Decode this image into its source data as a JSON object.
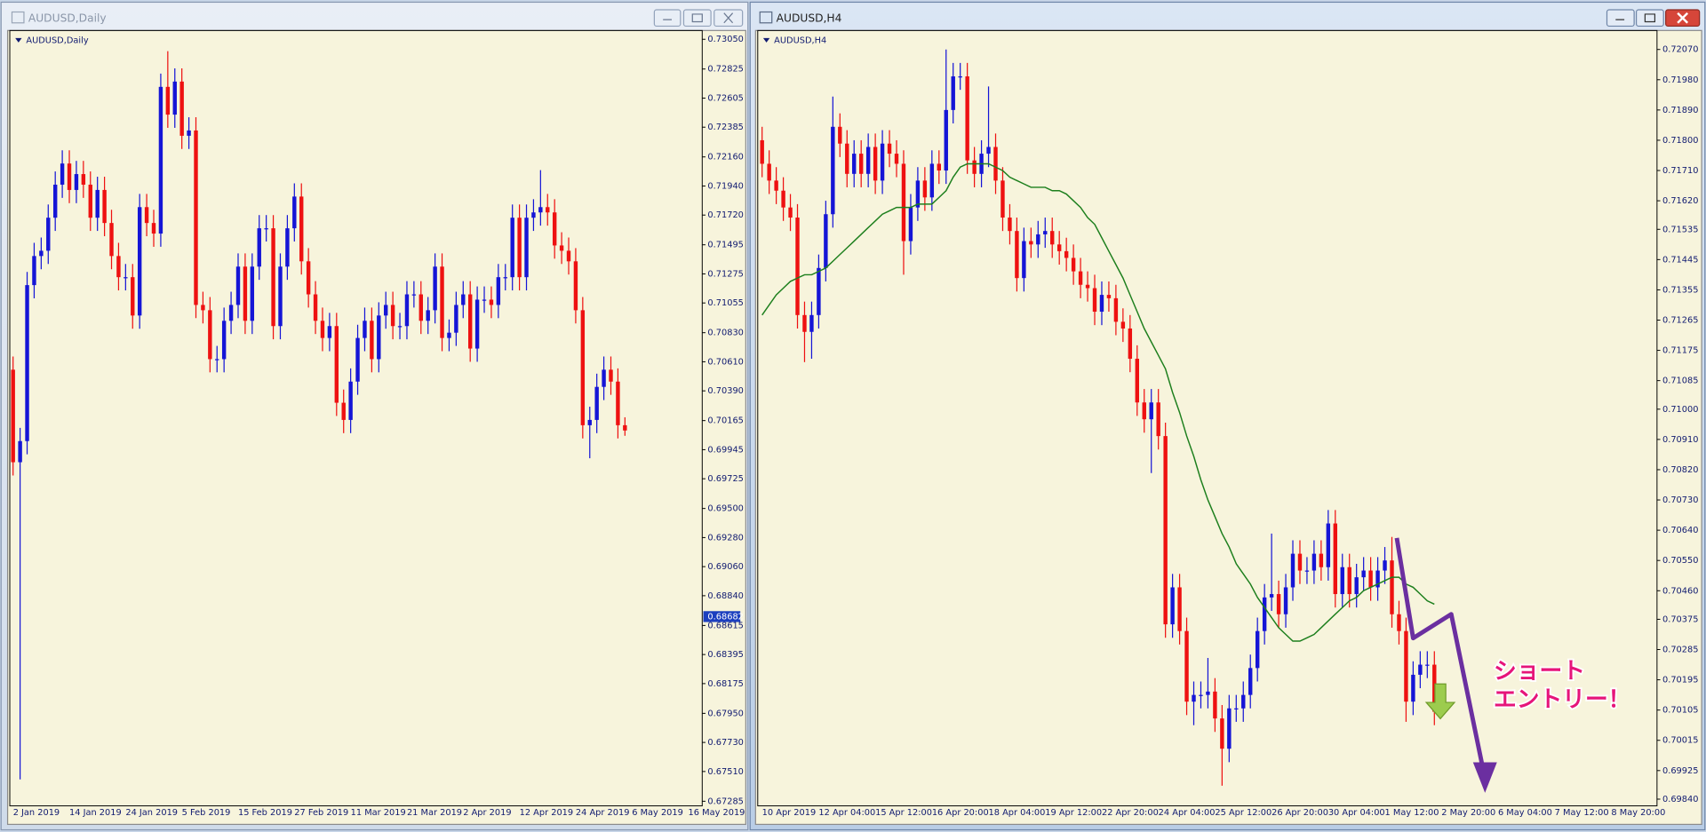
{
  "chart_data": [
    {
      "type": "candlestick",
      "title": "AUDUSD,Daily",
      "x_labels": [
        "2 Jan 2019",
        "14 Jan 2019",
        "24 Jan 2019",
        "5 Feb 2019",
        "15 Feb 2019",
        "27 Feb 2019",
        "11 Mar 2019",
        "21 Mar 2019",
        "2 Apr 2019",
        "12 Apr 2019",
        "24 Apr 2019",
        "6 May 2019",
        "16 May 2019"
      ],
      "open": [
        0.7055,
        0.6985,
        0.7001,
        0.7119,
        0.7141,
        0.7145,
        0.717,
        0.7195,
        0.7211,
        0.7191,
        0.7203,
        0.7195,
        0.717,
        0.7191,
        0.7166,
        0.7141,
        0.7125,
        0.7125,
        0.7096,
        0.7178,
        0.7166,
        0.7158,
        0.7269,
        0.7248,
        0.7273,
        0.7232,
        0.7236,
        0.7104,
        0.71,
        0.7063,
        0.7063,
        0.7092,
        0.7104,
        0.7133,
        0.7092,
        0.7133,
        0.7162,
        0.7162,
        0.7088,
        0.7133,
        0.7162,
        0.7186,
        0.7137,
        0.7112,
        0.7092,
        0.7079,
        0.7088,
        0.703,
        0.7017,
        0.7046,
        0.7079,
        0.7092,
        0.7063,
        0.7096,
        0.7104,
        0.7088,
        0.7088,
        0.7112,
        0.7112,
        0.7092,
        0.71,
        0.7133,
        0.7079,
        0.7083,
        0.7104,
        0.7112,
        0.7071,
        0.7108,
        0.7108,
        0.7104,
        0.7125,
        0.7125,
        0.717,
        0.7125,
        0.717,
        0.7174,
        0.7178,
        0.7174,
        0.7149,
        0.7145,
        0.7137,
        0.71,
        0.7013,
        0.7017,
        0.7042,
        0.7055,
        0.7046,
        0.7013
      ],
      "high": [
        0.7065,
        0.7011,
        0.7129,
        0.7151,
        0.7155,
        0.718,
        0.7205,
        0.7221,
        0.7221,
        0.7213,
        0.7213,
        0.7205,
        0.7201,
        0.7201,
        0.7176,
        0.7151,
        0.7135,
        0.7135,
        0.7188,
        0.7188,
        0.7176,
        0.7279,
        0.7296,
        0.7283,
        0.7283,
        0.7246,
        0.7246,
        0.7114,
        0.711,
        0.7073,
        0.7102,
        0.7114,
        0.7143,
        0.7143,
        0.7143,
        0.7172,
        0.7172,
        0.7172,
        0.7143,
        0.7172,
        0.7196,
        0.7196,
        0.7147,
        0.7122,
        0.7102,
        0.7098,
        0.7098,
        0.704,
        0.7056,
        0.7089,
        0.7102,
        0.7102,
        0.7106,
        0.7114,
        0.7114,
        0.7098,
        0.7122,
        0.7122,
        0.7122,
        0.711,
        0.7143,
        0.7143,
        0.7093,
        0.7114,
        0.7122,
        0.7122,
        0.7118,
        0.7118,
        0.7118,
        0.7135,
        0.7135,
        0.718,
        0.718,
        0.718,
        0.7184,
        0.7206,
        0.7188,
        0.7184,
        0.7159,
        0.7155,
        0.7147,
        0.711,
        0.7027,
        0.7052,
        0.7065,
        0.7065,
        0.7056,
        0.7019
      ],
      "low": [
        0.6975,
        0.6745,
        0.6991,
        0.7109,
        0.7131,
        0.7135,
        0.716,
        0.7185,
        0.7181,
        0.7181,
        0.7185,
        0.716,
        0.716,
        0.7156,
        0.7131,
        0.7115,
        0.7115,
        0.7086,
        0.7086,
        0.7156,
        0.7148,
        0.7148,
        0.7238,
        0.7238,
        0.7222,
        0.7222,
        0.7094,
        0.709,
        0.7053,
        0.7053,
        0.7053,
        0.7082,
        0.7094,
        0.7082,
        0.7082,
        0.7123,
        0.7152,
        0.7078,
        0.7078,
        0.7123,
        0.7152,
        0.7127,
        0.7102,
        0.7082,
        0.7069,
        0.7069,
        0.702,
        0.7007,
        0.7007,
        0.7036,
        0.7069,
        0.7053,
        0.7053,
        0.7086,
        0.7078,
        0.7078,
        0.7078,
        0.7102,
        0.7082,
        0.7082,
        0.709,
        0.7069,
        0.7069,
        0.7073,
        0.7094,
        0.7061,
        0.7061,
        0.7098,
        0.7094,
        0.7094,
        0.7115,
        0.7115,
        0.7115,
        0.7115,
        0.716,
        0.7164,
        0.7164,
        0.7139,
        0.7135,
        0.7127,
        0.709,
        0.7003,
        0.6988,
        0.7007,
        0.7032,
        0.7036,
        0.7003,
        0.7005
      ],
      "close": [
        0.6985,
        0.7001,
        0.7119,
        0.7141,
        0.7145,
        0.717,
        0.7195,
        0.7211,
        0.7191,
        0.7203,
        0.7195,
        0.717,
        0.7191,
        0.7166,
        0.7141,
        0.7125,
        0.7125,
        0.7096,
        0.7178,
        0.7166,
        0.7158,
        0.7269,
        0.7248,
        0.7273,
        0.7232,
        0.7236,
        0.7104,
        0.71,
        0.7063,
        0.7063,
        0.7092,
        0.7104,
        0.7133,
        0.7092,
        0.7133,
        0.7162,
        0.7162,
        0.7088,
        0.7133,
        0.7162,
        0.7186,
        0.7137,
        0.7112,
        0.7092,
        0.7079,
        0.7088,
        0.703,
        0.7017,
        0.7046,
        0.7079,
        0.7092,
        0.7063,
        0.7096,
        0.7104,
        0.7088,
        0.7088,
        0.7112,
        0.7112,
        0.7092,
        0.71,
        0.7133,
        0.7079,
        0.7083,
        0.7104,
        0.7112,
        0.7071,
        0.7108,
        0.7108,
        0.7104,
        0.7125,
        0.7125,
        0.717,
        0.7125,
        0.717,
        0.7174,
        0.7178,
        0.7174,
        0.7149,
        0.7145,
        0.7137,
        0.71,
        0.7013,
        0.7017,
        0.7042,
        0.7055,
        0.7046,
        0.7013,
        0.7009
      ],
      "up_color": "#1515d6",
      "down_color": "#ee1111",
      "ylim": [
        0.6725,
        0.731
      ],
      "yticks": [
        {
          "value": 0.7305,
          "label": "0.73050"
        },
        0.72825,
        0.72605,
        0.72385,
        {
          "value": 0.7216,
          "label": "0.72160"
        },
        {
          "value": 0.7194,
          "label": "0.71940"
        },
        {
          "value": 0.7172,
          "label": "0.71720"
        },
        0.71495,
        0.71275,
        0.71055,
        {
          "value": 0.7083,
          "label": "0.70830"
        },
        {
          "value": 0.7061,
          "label": "0.70610"
        },
        {
          "value": 0.7039,
          "label": "0.70390"
        },
        0.70165,
        0.69945,
        0.69725,
        {
          "value": 0.695,
          "label": "0.69500"
        },
        {
          "value": 0.6928,
          "label": "0.69280"
        },
        {
          "value": 0.6906,
          "label": "0.69060"
        },
        {
          "value": 0.6884,
          "label": "0.68840"
        },
        0.68615,
        0.68395,
        0.68175,
        {
          "value": 0.6795,
          "label": "0.67950"
        },
        {
          "value": 0.6773,
          "label": "0.67730"
        },
        {
          "value": 0.6751,
          "label": "0.67510"
        },
        0.67285
      ],
      "price_marker": 0.68682
    },
    {
      "type": "candlestick",
      "title": "AUDUSD,H4",
      "x_labels": [
        "10 Apr 2019",
        "12 Apr 04:00",
        "15 Apr 12:00",
        "16 Apr 20:00",
        "18 Apr 04:00",
        "19 Apr 12:00",
        "22 Apr 20:00",
        "24 Apr 04:00",
        "25 Apr 12:00",
        "26 Apr 20:00",
        "30 Apr 04:00",
        "1 May 12:00",
        "2 May 20:00",
        "6 May 04:00",
        "7 May 12:00",
        "8 May 20:00"
      ],
      "open": [
        0.718,
        0.7173,
        0.7168,
        0.7165,
        0.716,
        0.7157,
        0.7128,
        0.7123,
        0.7128,
        0.7142,
        0.7158,
        0.7184,
        0.7179,
        0.717,
        0.7176,
        0.717,
        0.7178,
        0.7168,
        0.7179,
        0.7176,
        0.7173,
        0.715,
        0.716,
        0.7168,
        0.7163,
        0.7173,
        0.7171,
        0.7189,
        0.7199,
        0.7199,
        0.7174,
        0.717,
        0.7176,
        0.7178,
        0.7168,
        0.7157,
        0.7153,
        0.7139,
        0.715,
        0.7149,
        0.7152,
        0.7153,
        0.7149,
        0.7147,
        0.7145,
        0.7141,
        0.7137,
        0.7136,
        0.7129,
        0.7134,
        0.7133,
        0.7126,
        0.7124,
        0.7115,
        0.7102,
        0.7097,
        0.7102,
        0.7092,
        0.7036,
        0.7047,
        0.7034,
        0.7013,
        0.7015,
        0.7015,
        0.7016,
        0.7008,
        0.6999,
        0.7011,
        0.7011,
        0.7015,
        0.7023,
        0.7034,
        0.7044,
        0.7045,
        0.7039,
        0.7047,
        0.7057,
        0.7052,
        0.7052,
        0.7057,
        0.7053,
        0.7066,
        0.7045,
        0.7053,
        0.7045,
        0.705,
        0.7052,
        0.7047,
        0.7052,
        0.7055,
        0.7039,
        0.7034,
        0.7013,
        0.7021,
        0.7024,
        0.7024
      ],
      "high": [
        0.7184,
        0.7177,
        0.7172,
        0.7169,
        0.7164,
        0.7161,
        0.7132,
        0.7132,
        0.7146,
        0.7162,
        0.7193,
        0.7188,
        0.7183,
        0.718,
        0.718,
        0.7182,
        0.7182,
        0.7183,
        0.7183,
        0.718,
        0.7177,
        0.7164,
        0.7172,
        0.7172,
        0.7177,
        0.7177,
        0.7207,
        0.7203,
        0.7203,
        0.7203,
        0.7178,
        0.718,
        0.7196,
        0.7182,
        0.7172,
        0.7161,
        0.7157,
        0.7154,
        0.7154,
        0.7156,
        0.7157,
        0.7157,
        0.7153,
        0.7151,
        0.7149,
        0.7145,
        0.7141,
        0.714,
        0.7138,
        0.7138,
        0.7137,
        0.713,
        0.7128,
        0.7119,
        0.7106,
        0.7106,
        0.7106,
        0.7096,
        0.7051,
        0.7051,
        0.7038,
        0.7019,
        0.7019,
        0.7026,
        0.702,
        0.7012,
        0.7015,
        0.7015,
        0.7019,
        0.7027,
        0.7038,
        0.7048,
        0.7063,
        0.7049,
        0.7051,
        0.7061,
        0.7061,
        0.7056,
        0.7061,
        0.7061,
        0.707,
        0.707,
        0.7057,
        0.7057,
        0.7054,
        0.7056,
        0.7056,
        0.7056,
        0.7059,
        0.7062,
        0.7043,
        0.7038,
        0.7025,
        0.7028,
        0.7028,
        0.7028
      ],
      "low": [
        0.7169,
        0.7164,
        0.7161,
        0.7156,
        0.7153,
        0.7124,
        0.7114,
        0.7115,
        0.7124,
        0.7138,
        0.7154,
        0.7175,
        0.7166,
        0.7166,
        0.7166,
        0.7166,
        0.7164,
        0.7164,
        0.7172,
        0.7169,
        0.714,
        0.7146,
        0.7156,
        0.7159,
        0.7159,
        0.7167,
        0.7167,
        0.7185,
        0.7195,
        0.717,
        0.7166,
        0.7166,
        0.7172,
        0.7164,
        0.7153,
        0.7149,
        0.7135,
        0.7135,
        0.7145,
        0.7145,
        0.7148,
        0.7145,
        0.7143,
        0.7141,
        0.7137,
        0.7133,
        0.7132,
        0.7125,
        0.7125,
        0.7129,
        0.7122,
        0.712,
        0.7111,
        0.7098,
        0.7093,
        0.7081,
        0.7088,
        0.7032,
        0.7032,
        0.703,
        0.7009,
        0.7006,
        0.7011,
        0.7011,
        0.7004,
        0.6988,
        0.6995,
        0.7007,
        0.7007,
        0.7011,
        0.7019,
        0.703,
        0.704,
        0.7035,
        0.7035,
        0.7043,
        0.7048,
        0.7048,
        0.7048,
        0.7049,
        0.7049,
        0.7041,
        0.7041,
        0.7041,
        0.7041,
        0.7046,
        0.7043,
        0.7043,
        0.7048,
        0.7035,
        0.703,
        0.7007,
        0.7009,
        0.7017,
        0.702,
        0.7006
      ],
      "close": [
        0.7173,
        0.7168,
        0.7165,
        0.716,
        0.7157,
        0.7128,
        0.7123,
        0.7128,
        0.7142,
        0.7158,
        0.7184,
        0.7179,
        0.717,
        0.7176,
        0.717,
        0.7178,
        0.7168,
        0.7179,
        0.7176,
        0.7173,
        0.715,
        0.716,
        0.7168,
        0.7163,
        0.7173,
        0.7171,
        0.7189,
        0.7199,
        0.7199,
        0.7174,
        0.717,
        0.7176,
        0.7178,
        0.7168,
        0.7157,
        0.7153,
        0.7139,
        0.715,
        0.7149,
        0.7152,
        0.7153,
        0.7149,
        0.7147,
        0.7145,
        0.7141,
        0.7137,
        0.7136,
        0.7129,
        0.7134,
        0.7133,
        0.7126,
        0.7124,
        0.7115,
        0.7102,
        0.7097,
        0.7102,
        0.7092,
        0.7036,
        0.7047,
        0.7034,
        0.7013,
        0.7015,
        0.7015,
        0.7016,
        0.7008,
        0.6999,
        0.7011,
        0.7011,
        0.7015,
        0.7023,
        0.7034,
        0.7044,
        0.7045,
        0.7039,
        0.7047,
        0.7057,
        0.7052,
        0.7052,
        0.7057,
        0.7053,
        0.7066,
        0.7045,
        0.7053,
        0.7045,
        0.705,
        0.7052,
        0.7047,
        0.7052,
        0.7055,
        0.7039,
        0.7034,
        0.7013,
        0.7021,
        0.7024,
        0.7024,
        0.701
      ],
      "ma": {
        "color": "#1d7f1d",
        "values": [
          0.7128,
          0.7131,
          0.7134,
          0.7136,
          0.7138,
          0.7139,
          0.714,
          0.714,
          0.7141,
          0.7142,
          0.7144,
          0.7146,
          0.7148,
          0.715,
          0.7152,
          0.7154,
          0.7156,
          0.7158,
          0.7159,
          0.716,
          0.716,
          0.716,
          0.7161,
          0.7161,
          0.7161,
          0.7163,
          0.7165,
          0.7169,
          0.7172,
          0.7173,
          0.7173,
          0.7173,
          0.7173,
          0.7172,
          0.7171,
          0.7169,
          0.7168,
          0.7167,
          0.7166,
          0.7166,
          0.7166,
          0.7165,
          0.7165,
          0.7164,
          0.7162,
          0.716,
          0.7157,
          0.7155,
          0.7151,
          0.7147,
          0.7143,
          0.7139,
          0.7134,
          0.7129,
          0.7124,
          0.712,
          0.7116,
          0.7112,
          0.7105,
          0.7099,
          0.7092,
          0.7086,
          0.7079,
          0.7073,
          0.7068,
          0.7063,
          0.7059,
          0.7054,
          0.7051,
          0.7048,
          0.7044,
          0.7041,
          0.7038,
          0.7035,
          0.7033,
          0.7031,
          0.7031,
          0.7032,
          0.7033,
          0.7035,
          0.7037,
          0.7039,
          0.7041,
          0.7043,
          0.7044,
          0.7046,
          0.7047,
          0.7048,
          0.7049,
          0.705,
          0.705,
          0.7048,
          0.7047,
          0.7045,
          0.7043,
          0.7042
        ]
      },
      "up_color": "#1515d6",
      "down_color": "#ee1111",
      "ylim": [
        0.6982,
        0.7212
      ],
      "yticks": [
        {
          "value": 0.7207,
          "label": "0.72070"
        },
        {
          "value": 0.7198,
          "label": "0.71980"
        },
        {
          "value": 0.7189,
          "label": "0.71890"
        },
        {
          "value": 0.718,
          "label": "0.71800"
        },
        {
          "value": 0.7171,
          "label": "0.71710"
        },
        {
          "value": 0.7162,
          "label": "0.71620"
        },
        0.71535,
        0.71445,
        0.71355,
        0.71265,
        0.71175,
        0.71085,
        {
          "value": 0.71,
          "label": "0.71000"
        },
        {
          "value": 0.7091,
          "label": "0.70910"
        },
        {
          "value": 0.7082,
          "label": "0.70820"
        },
        {
          "value": 0.7073,
          "label": "0.70730"
        },
        {
          "value": 0.7064,
          "label": "0.70640"
        },
        {
          "value": 0.7055,
          "label": "0.70550"
        },
        {
          "value": 0.7046,
          "label": "0.70460"
        },
        0.70375,
        0.70285,
        0.70195,
        0.70105,
        0.70015,
        0.69925,
        {
          "value": 0.6984,
          "label": "0.69840"
        }
      ],
      "annotation": [
        "ショート",
        "エントリー！"
      ]
    }
  ]
}
